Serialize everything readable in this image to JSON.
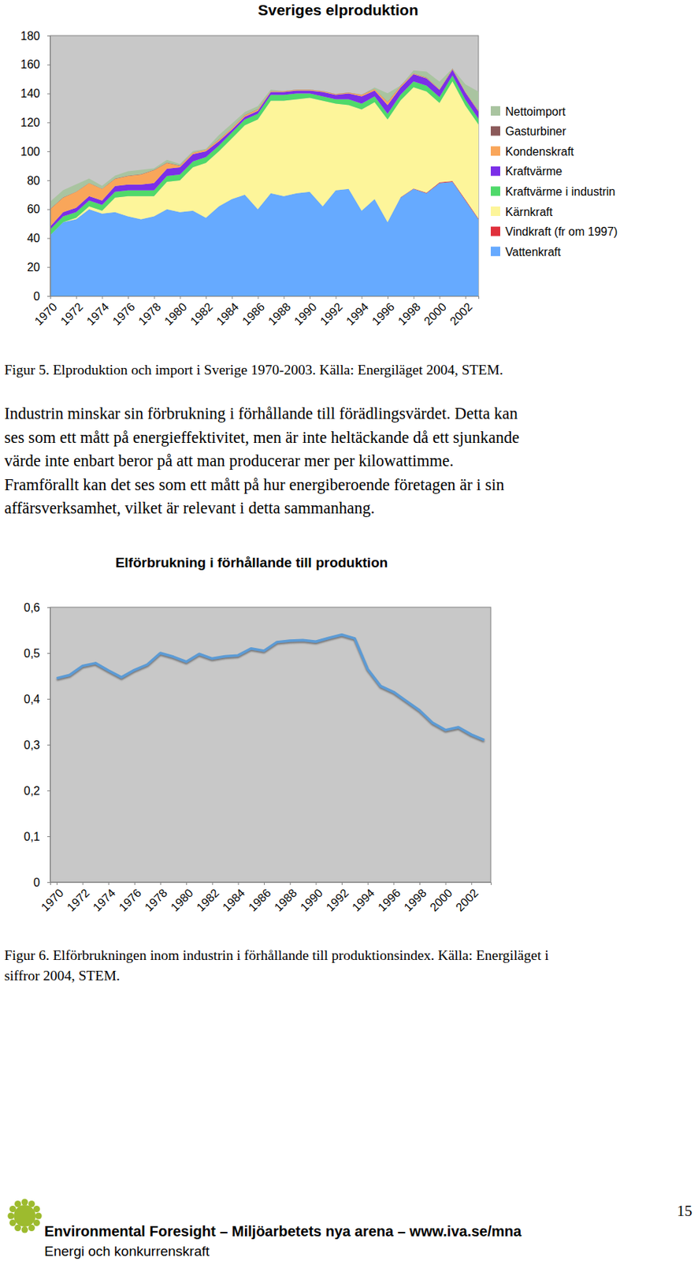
{
  "chart_data": [
    {
      "type": "area",
      "stacked": true,
      "title": "Sveriges elproduktion",
      "x": [
        1970,
        1971,
        1972,
        1973,
        1974,
        1975,
        1976,
        1977,
        1978,
        1979,
        1980,
        1981,
        1982,
        1983,
        1984,
        1985,
        1986,
        1987,
        1988,
        1989,
        1990,
        1991,
        1992,
        1993,
        1994,
        1995,
        1996,
        1997,
        1998,
        1999,
        2000,
        2001,
        2002,
        2003
      ],
      "xlim": [
        1970,
        2003
      ],
      "xticks": [
        1970,
        1972,
        1974,
        1976,
        1978,
        1980,
        1982,
        1984,
        1986,
        1988,
        1990,
        1992,
        1994,
        1996,
        1998,
        2000,
        2002
      ],
      "ylim": [
        0,
        180
      ],
      "yticks": [
        0,
        20,
        40,
        60,
        80,
        100,
        120,
        140,
        160,
        180
      ],
      "grid": false,
      "legend": "right",
      "series": [
        {
          "name": "Vattenkraft",
          "color": "#66aaff",
          "values": [
            42,
            51,
            53,
            60,
            57,
            58,
            55,
            53,
            55,
            60,
            58,
            59,
            54,
            62,
            67,
            70,
            60,
            71,
            69,
            71,
            72,
            62,
            73,
            74,
            59,
            67,
            51,
            68,
            74,
            71,
            78,
            79,
            66,
            53
          ]
        },
        {
          "name": "Vindkraft (fr om 1997)",
          "color": "#e0303c",
          "values": [
            null,
            null,
            null,
            null,
            null,
            null,
            null,
            null,
            null,
            null,
            null,
            null,
            null,
            null,
            null,
            null,
            null,
            null,
            null,
            null,
            null,
            null,
            null,
            null,
            null,
            null,
            null,
            0.2,
            0.3,
            0.4,
            0.5,
            0.5,
            0.6,
            0.6
          ]
        },
        {
          "name": "Kärnkraft",
          "color": "#fdf59a",
          "values": [
            0,
            0,
            1,
            2,
            2,
            10,
            14,
            16,
            14,
            19,
            22,
            30,
            38,
            38,
            42,
            48,
            62,
            64,
            66,
            65,
            65,
            73,
            60,
            58,
            70,
            67,
            71,
            67,
            70,
            70,
            55,
            69,
            65,
            65
          ]
        },
        {
          "name": "Kraftvärme i industrin",
          "color": "#4fd96a",
          "values": [
            4,
            4,
            4,
            4,
            4,
            4,
            4,
            4,
            4,
            4,
            4,
            4,
            4,
            4,
            4,
            4,
            4,
            4,
            4,
            4,
            3,
            3,
            3,
            4,
            4,
            4,
            4,
            4,
            4,
            4,
            4,
            4,
            4,
            4
          ]
        },
        {
          "name": "Kraftvärme",
          "color": "#7b2fe8",
          "values": [
            2,
            3,
            3,
            3,
            3,
            4,
            4,
            4,
            5,
            5,
            5,
            5,
            4,
            3,
            2,
            2,
            2,
            2,
            2,
            2,
            2,
            3,
            3,
            4,
            5,
            4,
            6,
            5,
            5,
            5,
            5,
            4,
            5,
            5
          ]
        },
        {
          "name": "Kondenskraft",
          "color": "#f9a65a",
          "values": [
            12,
            10,
            11,
            9,
            8,
            5,
            6,
            7,
            9,
            4,
            1,
            1,
            1,
            1,
            1,
            1,
            1,
            0.5,
            0.5,
            0.5,
            0.5,
            0.5,
            0.5,
            0.5,
            1,
            1,
            2,
            1,
            0.5,
            0.5,
            0.5,
            0.5,
            0.5,
            0.5
          ]
        },
        {
          "name": "Gasturbiner",
          "color": "#8b5a5a",
          "values": [
            0.2,
            0.2,
            0.2,
            0.2,
            0.2,
            0.2,
            0.2,
            0.2,
            0.2,
            0.2,
            0.2,
            0.2,
            0.2,
            0.2,
            0.2,
            0.2,
            0.2,
            0.2,
            0.2,
            0.2,
            0.2,
            0.2,
            0.2,
            0.2,
            0.2,
            0.2,
            0.2,
            0.2,
            0.2,
            0.2,
            0.2,
            0.2,
            0.2,
            0.2
          ]
        },
        {
          "name": "Nettoimport",
          "color": "#a9c4a0",
          "values": [
            5,
            5,
            5,
            3,
            2,
            2,
            3,
            3,
            1,
            2,
            1,
            1,
            0.5,
            3,
            3,
            2,
            2,
            1,
            0,
            0,
            0,
            0,
            0,
            0,
            0,
            1,
            6,
            0,
            2,
            4,
            5,
            0,
            5,
            13
          ]
        }
      ]
    },
    {
      "type": "line",
      "title": "Elförbrukning i förhållande till produktion",
      "x": [
        1970,
        1971,
        1972,
        1973,
        1974,
        1975,
        1976,
        1977,
        1978,
        1979,
        1980,
        1981,
        1982,
        1983,
        1984,
        1985,
        1986,
        1987,
        1988,
        1989,
        1990,
        1991,
        1992,
        1993,
        1994,
        1995,
        1996,
        1997,
        1998,
        1999,
        2000,
        2001,
        2002,
        2003
      ],
      "xlim": [
        1969.5,
        2003.5
      ],
      "xticks": [
        1970,
        1972,
        1974,
        1976,
        1978,
        1980,
        1982,
        1984,
        1986,
        1988,
        1990,
        1992,
        1994,
        1996,
        1998,
        2000,
        2002
      ],
      "ylim": [
        0,
        0.6
      ],
      "yticks": [
        0,
        {
          "value": 0.1,
          "label": "0,1"
        },
        {
          "value": 0.2,
          "label": "0,2"
        },
        {
          "value": 0.3,
          "label": "0,3"
        },
        {
          "value": 0.4,
          "label": "0,4"
        },
        {
          "value": 0.5,
          "label": "0,5"
        },
        {
          "value": 0.6,
          "label": "0,6"
        }
      ],
      "grid": false,
      "color": "#5b9bd5",
      "values": [
        0.445,
        0.452,
        0.472,
        0.478,
        0.462,
        0.447,
        0.463,
        0.475,
        0.5,
        0.492,
        0.481,
        0.498,
        0.488,
        0.493,
        0.495,
        0.51,
        0.505,
        0.524,
        0.527,
        0.528,
        0.525,
        0.533,
        0.54,
        0.532,
        0.465,
        0.428,
        0.415,
        0.395,
        0.375,
        0.348,
        0.332,
        0.338,
        0.322,
        0.31
      ]
    }
  ],
  "document": {
    "caption_1": "Figur 5. Elproduktion och import i Sverige 1970-2003. Källa: Energiläget 2004, STEM.",
    "paragraph": [
      "Industrin minskar sin förbrukning i förhållande till förädlingsvärdet. Detta kan",
      "ses som ett mått på energieffektivitet, men är inte heltäckande då ett sjunkande",
      "värde inte enbart beror på att man producerar mer per kilowattimme.",
      "Framförallt kan det ses som ett mått på hur energiberoende företagen är i sin",
      "affärsverksamhet, vilket är relevant i detta sammanhang."
    ],
    "caption_2": [
      "Figur 6. Elförbrukningen inom industrin i förhållande till produktionsindex. Källa: Energiläget i",
      "siffror 2004, STEM."
    ],
    "footer": {
      "title": "Environmental Foresight – Miljöarbetets nya arena – www.iva.se/mna",
      "subtitle": "Energi och konkurrenskraft"
    },
    "page_number": "15"
  }
}
